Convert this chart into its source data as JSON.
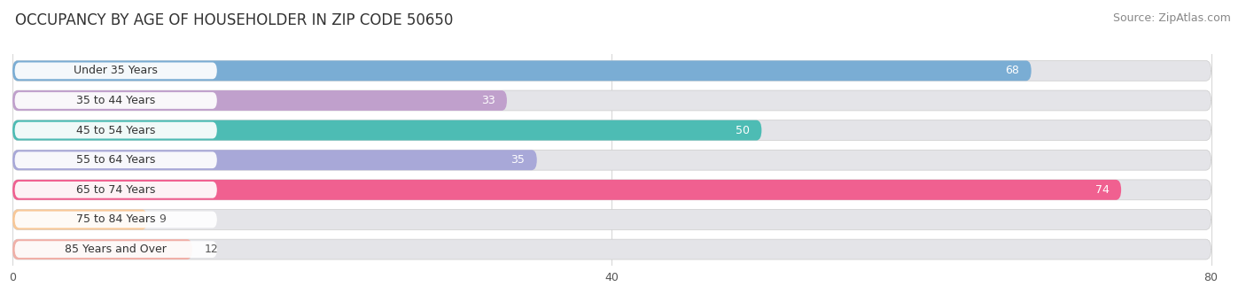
{
  "title": "OCCUPANCY BY AGE OF HOUSEHOLDER IN ZIP CODE 50650",
  "source": "Source: ZipAtlas.com",
  "categories": [
    "Under 35 Years",
    "35 to 44 Years",
    "45 to 54 Years",
    "55 to 64 Years",
    "65 to 74 Years",
    "75 to 84 Years",
    "85 Years and Over"
  ],
  "values": [
    68,
    33,
    50,
    35,
    74,
    9,
    12
  ],
  "bar_colors": [
    "#7aadd4",
    "#c0a0cc",
    "#4dbcb4",
    "#a8a8d8",
    "#f06090",
    "#f8c898",
    "#f0b0a8"
  ],
  "bar_bg_color": "#e4e4e8",
  "xlim_max": 80,
  "xticks": [
    0,
    40,
    80
  ],
  "title_fontsize": 12,
  "source_fontsize": 9,
  "label_fontsize": 9,
  "value_fontsize": 9,
  "bg_color": "#ffffff",
  "bar_height": 0.68,
  "label_text_color": "#333333",
  "value_color_inside": "#ffffff",
  "value_color_outside": "#555555",
  "label_pill_color": "#ffffff",
  "grid_color": "#d8d8d8"
}
